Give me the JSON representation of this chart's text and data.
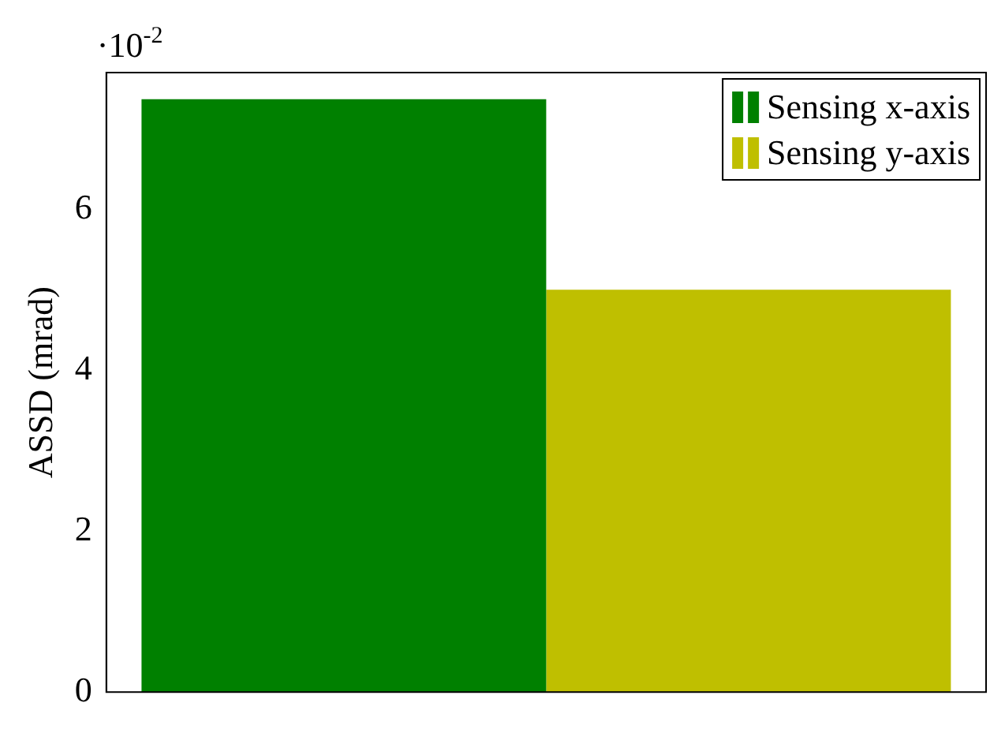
{
  "chart_data": {
    "type": "bar",
    "ylabel": "ASSD (mrad)",
    "categories": [
      null
    ],
    "series": [
      {
        "name": "Sensing x-axis",
        "color": "#008000",
        "values": [
          7.37
        ]
      },
      {
        "name": "Sensing y-axis",
        "color": "#bfbf00",
        "values": [
          5.0
        ]
      }
    ],
    "ylim": [
      0,
      7.7
    ],
    "yticks": [
      0,
      2,
      4,
      6
    ],
    "annotations": [
      "·10$^{-2}$"
    ],
    "legend": "top right",
    "grid": false
  }
}
